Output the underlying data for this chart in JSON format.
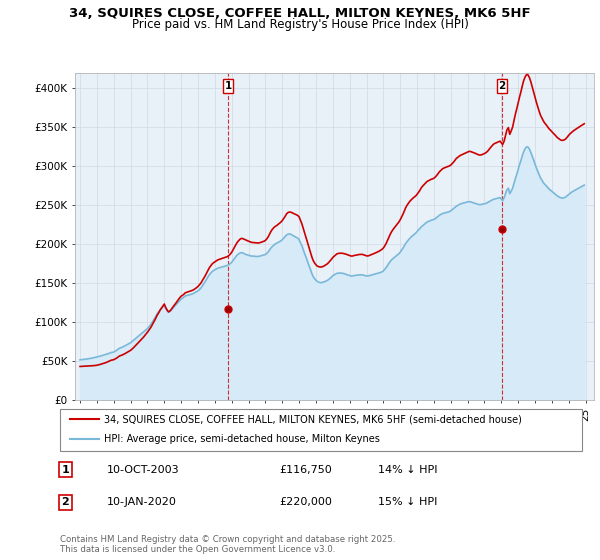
{
  "title_line1": "34, SQUIRES CLOSE, COFFEE HALL, MILTON KEYNES, MK6 5HF",
  "title_line2": "Price paid vs. HM Land Registry's House Price Index (HPI)",
  "ylabel_ticks": [
    "£0",
    "£50K",
    "£100K",
    "£150K",
    "£200K",
    "£250K",
    "£300K",
    "£350K",
    "£400K"
  ],
  "ylabel_values": [
    0,
    50000,
    100000,
    150000,
    200000,
    250000,
    300000,
    350000,
    400000
  ],
  "ylim": [
    0,
    420000
  ],
  "xlim_start": 1994.7,
  "xlim_end": 2025.5,
  "hpi_color": "#7ab8d9",
  "hpi_fill_color": "#d6eaf8",
  "price_color": "#cc0000",
  "dashed_line_color": "#cc0000",
  "sale1_x": 2003.78,
  "sale1_y": 116750,
  "sale1_label": "1",
  "sale1_date": "10-OCT-2003",
  "sale1_price": "£116,750",
  "sale1_hpi": "14% ↓ HPI",
  "sale2_x": 2020.03,
  "sale2_y": 220000,
  "sale2_label": "2",
  "sale2_date": "10-JAN-2020",
  "sale2_price": "£220,000",
  "sale2_hpi": "15% ↓ HPI",
  "legend_label1": "34, SQUIRES CLOSE, COFFEE HALL, MILTON KEYNES, MK6 5HF (semi-detached house)",
  "legend_label2": "HPI: Average price, semi-detached house, Milton Keynes",
  "footnote": "Contains HM Land Registry data © Crown copyright and database right 2025.\nThis data is licensed under the Open Government Licence v3.0.",
  "xtick_years": [
    1995,
    1996,
    1997,
    1998,
    1999,
    2000,
    2001,
    2002,
    2003,
    2004,
    2005,
    2006,
    2007,
    2008,
    2009,
    2010,
    2011,
    2012,
    2013,
    2014,
    2015,
    2016,
    2017,
    2018,
    2019,
    2020,
    2021,
    2022,
    2023,
    2024,
    2025
  ],
  "hpi_x": [
    1995.0,
    1995.08,
    1995.17,
    1995.25,
    1995.33,
    1995.42,
    1995.5,
    1995.58,
    1995.67,
    1995.75,
    1995.83,
    1995.92,
    1996.0,
    1996.08,
    1996.17,
    1996.25,
    1996.33,
    1996.42,
    1996.5,
    1996.58,
    1996.67,
    1996.75,
    1996.83,
    1996.92,
    1997.0,
    1997.08,
    1997.17,
    1997.25,
    1997.33,
    1997.42,
    1997.5,
    1997.58,
    1997.67,
    1997.75,
    1997.83,
    1997.92,
    1998.0,
    1998.08,
    1998.17,
    1998.25,
    1998.33,
    1998.42,
    1998.5,
    1998.58,
    1998.67,
    1998.75,
    1998.83,
    1998.92,
    1999.0,
    1999.08,
    1999.17,
    1999.25,
    1999.33,
    1999.42,
    1999.5,
    1999.58,
    1999.67,
    1999.75,
    1999.83,
    1999.92,
    2000.0,
    2000.08,
    2000.17,
    2000.25,
    2000.33,
    2000.42,
    2000.5,
    2000.58,
    2000.67,
    2000.75,
    2000.83,
    2000.92,
    2001.0,
    2001.08,
    2001.17,
    2001.25,
    2001.33,
    2001.42,
    2001.5,
    2001.58,
    2001.67,
    2001.75,
    2001.83,
    2001.92,
    2002.0,
    2002.08,
    2002.17,
    2002.25,
    2002.33,
    2002.42,
    2002.5,
    2002.58,
    2002.67,
    2002.75,
    2002.83,
    2002.92,
    2003.0,
    2003.08,
    2003.17,
    2003.25,
    2003.33,
    2003.42,
    2003.5,
    2003.58,
    2003.67,
    2003.75,
    2003.83,
    2003.92,
    2004.0,
    2004.08,
    2004.17,
    2004.25,
    2004.33,
    2004.42,
    2004.5,
    2004.58,
    2004.67,
    2004.75,
    2004.83,
    2004.92,
    2005.0,
    2005.08,
    2005.17,
    2005.25,
    2005.33,
    2005.42,
    2005.5,
    2005.58,
    2005.67,
    2005.75,
    2005.83,
    2005.92,
    2006.0,
    2006.08,
    2006.17,
    2006.25,
    2006.33,
    2006.42,
    2006.5,
    2006.58,
    2006.67,
    2006.75,
    2006.83,
    2006.92,
    2007.0,
    2007.08,
    2007.17,
    2007.25,
    2007.33,
    2007.42,
    2007.5,
    2007.58,
    2007.67,
    2007.75,
    2007.83,
    2007.92,
    2008.0,
    2008.08,
    2008.17,
    2008.25,
    2008.33,
    2008.42,
    2008.5,
    2008.58,
    2008.67,
    2008.75,
    2008.83,
    2008.92,
    2009.0,
    2009.08,
    2009.17,
    2009.25,
    2009.33,
    2009.42,
    2009.5,
    2009.58,
    2009.67,
    2009.75,
    2009.83,
    2009.92,
    2010.0,
    2010.08,
    2010.17,
    2010.25,
    2010.33,
    2010.42,
    2010.5,
    2010.58,
    2010.67,
    2010.75,
    2010.83,
    2010.92,
    2011.0,
    2011.08,
    2011.17,
    2011.25,
    2011.33,
    2011.42,
    2011.5,
    2011.58,
    2011.67,
    2011.75,
    2011.83,
    2011.92,
    2012.0,
    2012.08,
    2012.17,
    2012.25,
    2012.33,
    2012.42,
    2012.5,
    2012.58,
    2012.67,
    2012.75,
    2012.83,
    2012.92,
    2013.0,
    2013.08,
    2013.17,
    2013.25,
    2013.33,
    2013.42,
    2013.5,
    2013.58,
    2013.67,
    2013.75,
    2013.83,
    2013.92,
    2014.0,
    2014.08,
    2014.17,
    2014.25,
    2014.33,
    2014.42,
    2014.5,
    2014.58,
    2014.67,
    2014.75,
    2014.83,
    2014.92,
    2015.0,
    2015.08,
    2015.17,
    2015.25,
    2015.33,
    2015.42,
    2015.5,
    2015.58,
    2015.67,
    2015.75,
    2015.83,
    2015.92,
    2016.0,
    2016.08,
    2016.17,
    2016.25,
    2016.33,
    2016.42,
    2016.5,
    2016.58,
    2016.67,
    2016.75,
    2016.83,
    2016.92,
    2017.0,
    2017.08,
    2017.17,
    2017.25,
    2017.33,
    2017.42,
    2017.5,
    2017.58,
    2017.67,
    2017.75,
    2017.83,
    2017.92,
    2018.0,
    2018.08,
    2018.17,
    2018.25,
    2018.33,
    2018.42,
    2018.5,
    2018.58,
    2018.67,
    2018.75,
    2018.83,
    2018.92,
    2019.0,
    2019.08,
    2019.17,
    2019.25,
    2019.33,
    2019.42,
    2019.5,
    2019.58,
    2019.67,
    2019.75,
    2019.83,
    2019.92,
    2020.0,
    2020.08,
    2020.17,
    2020.25,
    2020.33,
    2020.42,
    2020.5,
    2020.58,
    2020.67,
    2020.75,
    2020.83,
    2020.92,
    2021.0,
    2021.08,
    2021.17,
    2021.25,
    2021.33,
    2021.42,
    2021.5,
    2021.58,
    2021.67,
    2021.75,
    2021.83,
    2021.92,
    2022.0,
    2022.08,
    2022.17,
    2022.25,
    2022.33,
    2022.42,
    2022.5,
    2022.58,
    2022.67,
    2022.75,
    2022.83,
    2022.92,
    2023.0,
    2023.08,
    2023.17,
    2023.25,
    2023.33,
    2023.42,
    2023.5,
    2023.58,
    2023.67,
    2023.75,
    2023.83,
    2023.92,
    2024.0,
    2024.08,
    2024.17,
    2024.25,
    2024.33,
    2024.42,
    2024.5,
    2024.58,
    2024.67,
    2024.75,
    2024.83,
    2024.92
  ],
  "hpi_y": [
    52000,
    52200,
    52400,
    52600,
    52800,
    53100,
    53400,
    53700,
    54000,
    54400,
    54800,
    55200,
    55600,
    56100,
    56600,
    57100,
    57600,
    58100,
    58700,
    59300,
    59900,
    60600,
    61300,
    61600,
    62000,
    63000,
    64200,
    65500,
    66800,
    67500,
    68200,
    69000,
    70000,
    71000,
    72000,
    73000,
    74000,
    75500,
    77000,
    78500,
    80000,
    81500,
    83000,
    84500,
    86000,
    87500,
    89000,
    90500,
    92000,
    94000,
    96500,
    99000,
    102000,
    105000,
    108000,
    111000,
    113500,
    116000,
    118000,
    120000,
    122000,
    118000,
    115000,
    113000,
    114000,
    116000,
    118000,
    120000,
    122000,
    124000,
    126000,
    128000,
    130000,
    131000,
    132500,
    134000,
    134500,
    135000,
    135500,
    136000,
    136500,
    137500,
    138500,
    139500,
    140500,
    142000,
    144000,
    146500,
    149000,
    152000,
    155000,
    158000,
    161000,
    163000,
    165000,
    166500,
    167500,
    168500,
    169500,
    170000,
    170500,
    171000,
    171500,
    172000,
    172500,
    173000,
    174000,
    175500,
    177000,
    179500,
    182000,
    184500,
    186500,
    188000,
    189000,
    189500,
    189000,
    188000,
    187200,
    186500,
    186000,
    185500,
    185000,
    185000,
    184800,
    184600,
    184500,
    184500,
    185000,
    185500,
    186000,
    186500,
    187000,
    188500,
    190500,
    193000,
    195500,
    197500,
    199000,
    200500,
    201500,
    202500,
    203500,
    204500,
    206000,
    208000,
    210000,
    212000,
    213000,
    213500,
    213000,
    212000,
    211000,
    210000,
    209000,
    208000,
    206000,
    202000,
    198000,
    193000,
    188000,
    183000,
    178000,
    173000,
    168000,
    163000,
    159000,
    156000,
    154000,
    152500,
    151500,
    151000,
    151000,
    151500,
    152000,
    152800,
    153800,
    155000,
    156500,
    158000,
    160000,
    161000,
    162000,
    163000,
    163200,
    163300,
    163200,
    163000,
    162500,
    161800,
    161200,
    160500,
    160000,
    159500,
    159500,
    160000,
    160200,
    160500,
    160800,
    161000,
    161000,
    161000,
    160500,
    160000,
    159500,
    159500,
    160000,
    160500,
    161000,
    161500,
    162000,
    162500,
    163000,
    163500,
    164000,
    164800,
    166000,
    168000,
    170500,
    173000,
    176000,
    178500,
    180500,
    182000,
    183500,
    185000,
    186500,
    188000,
    190000,
    192500,
    195500,
    198500,
    201500,
    204000,
    206000,
    208000,
    210000,
    211500,
    213000,
    214500,
    216500,
    218500,
    220500,
    222500,
    224000,
    225500,
    227000,
    228500,
    229500,
    230000,
    231000,
    231500,
    232000,
    233000,
    234500,
    236000,
    237500,
    238500,
    239500,
    240000,
    240500,
    241000,
    241500,
    242000,
    243000,
    244500,
    246000,
    247500,
    249000,
    250000,
    251000,
    252000,
    252500,
    253000,
    253500,
    254000,
    254500,
    254800,
    254600,
    254000,
    253500,
    252800,
    252200,
    251500,
    251000,
    251000,
    251200,
    251800,
    252000,
    252500,
    253500,
    254500,
    255500,
    256500,
    257500,
    258000,
    258500,
    259000,
    259500,
    260000,
    258000,
    256000,
    260000,
    265000,
    270000,
    272000,
    265000,
    268000,
    272000,
    278000,
    284000,
    290000,
    296000,
    302000,
    308000,
    314000,
    319000,
    323000,
    325000,
    325000,
    322000,
    318000,
    313000,
    308000,
    303000,
    298000,
    293000,
    289000,
    285000,
    282000,
    279000,
    277000,
    275000,
    273000,
    271000,
    269500,
    268000,
    266500,
    265000,
    263500,
    262000,
    261000,
    260000,
    259500,
    259500,
    260000,
    261000,
    262500,
    264000,
    265500,
    267000,
    268000,
    269000,
    270000,
    271000,
    272000,
    273000,
    274000,
    275000,
    276000
  ],
  "price_y_raw": [
    43500,
    43600,
    43700,
    43800,
    43900,
    44000,
    44100,
    44200,
    44300,
    44400,
    44600,
    44800,
    45100,
    45500,
    46000,
    46500,
    47000,
    47600,
    48200,
    48900,
    49700,
    50500,
    51400,
    51800,
    52200,
    53100,
    54200,
    55500,
    56800,
    57500,
    58200,
    59000,
    60000,
    61000,
    62000,
    63100,
    64200,
    65700,
    67500,
    69300,
    71200,
    73000,
    74900,
    76800,
    78700,
    80700,
    82800,
    85000,
    87400,
    89800,
    92600,
    95500,
    98800,
    102200,
    105700,
    109300,
    112500,
    115700,
    118200,
    120900,
    123600,
    119200,
    115700,
    113500,
    114600,
    117000,
    119400,
    121800,
    124200,
    126700,
    129100,
    131700,
    133700,
    134700,
    136300,
    138000,
    138600,
    139200,
    139800,
    140400,
    141100,
    142000,
    143200,
    144600,
    146100,
    148000,
    150400,
    153200,
    156200,
    159500,
    162900,
    166500,
    170000,
    172300,
    174700,
    176500,
    177700,
    178900,
    180100,
    180700,
    181300,
    181900,
    182500,
    183100,
    183700,
    184400,
    185700,
    187700,
    189900,
    193100,
    196500,
    199800,
    202700,
    205000,
    206800,
    207700,
    207300,
    206500,
    205700,
    204800,
    204100,
    203400,
    202600,
    202400,
    202200,
    202000,
    201900,
    201800,
    202200,
    202800,
    203400,
    204100,
    205100,
    207000,
    209900,
    213300,
    216700,
    219600,
    221500,
    223000,
    224200,
    225600,
    227000,
    228600,
    230500,
    233100,
    235900,
    239000,
    240700,
    241500,
    241400,
    240600,
    239700,
    238900,
    238000,
    237100,
    235300,
    230800,
    226000,
    220200,
    214300,
    208300,
    202200,
    196200,
    190200,
    184300,
    179600,
    176100,
    173800,
    172200,
    171400,
    171000,
    171100,
    171700,
    172600,
    173700,
    175000,
    176700,
    178700,
    180900,
    183300,
    184800,
    186400,
    188000,
    188400,
    188700,
    188700,
    188600,
    188200,
    187700,
    187100,
    186400,
    185700,
    185100,
    185100,
    185700,
    186000,
    186400,
    186800,
    187100,
    187200,
    187200,
    186700,
    186000,
    185300,
    185200,
    185800,
    186500,
    187200,
    188000,
    188800,
    189600,
    190400,
    191300,
    192400,
    193700,
    195400,
    198000,
    201500,
    205400,
    209600,
    213600,
    216700,
    219300,
    221700,
    224000,
    226300,
    228800,
    231600,
    235000,
    239000,
    243200,
    247300,
    250700,
    253200,
    255500,
    257500,
    259200,
    260700,
    262200,
    264200,
    266700,
    269400,
    272500,
    274700,
    276700,
    278600,
    280400,
    281600,
    282400,
    283400,
    284000,
    284900,
    286300,
    288500,
    290800,
    293200,
    295000,
    296700,
    297800,
    298600,
    299300,
    299900,
    300600,
    301700,
    303500,
    305600,
    307900,
    310200,
    311800,
    313100,
    314200,
    315100,
    315900,
    316600,
    317500,
    318500,
    319200,
    319100,
    318500,
    317900,
    317100,
    316300,
    315400,
    314700,
    314600,
    314900,
    315700,
    316500,
    317500,
    319100,
    321100,
    323400,
    325600,
    327700,
    329100,
    329900,
    330700,
    331500,
    332400,
    330300,
    328100,
    332600,
    339600,
    346700,
    349800,
    341100,
    345100,
    350400,
    358400,
    366600,
    374200,
    381600,
    388800,
    396200,
    403700,
    410200,
    415100,
    417700,
    417500,
    413700,
    408600,
    402400,
    395700,
    388800,
    382300,
    375800,
    370300,
    365300,
    361400,
    358100,
    355400,
    353100,
    350800,
    348300,
    346400,
    344500,
    342600,
    340700,
    338800,
    336800,
    335500,
    334100,
    333400,
    333500,
    334200,
    335500,
    337700,
    340000,
    341800,
    343600,
    345100,
    346400,
    347700,
    348900,
    350000,
    351200,
    352400,
    353500,
    354700
  ],
  "bg_color": "#ffffff",
  "grid_color": "#d0d8e4"
}
